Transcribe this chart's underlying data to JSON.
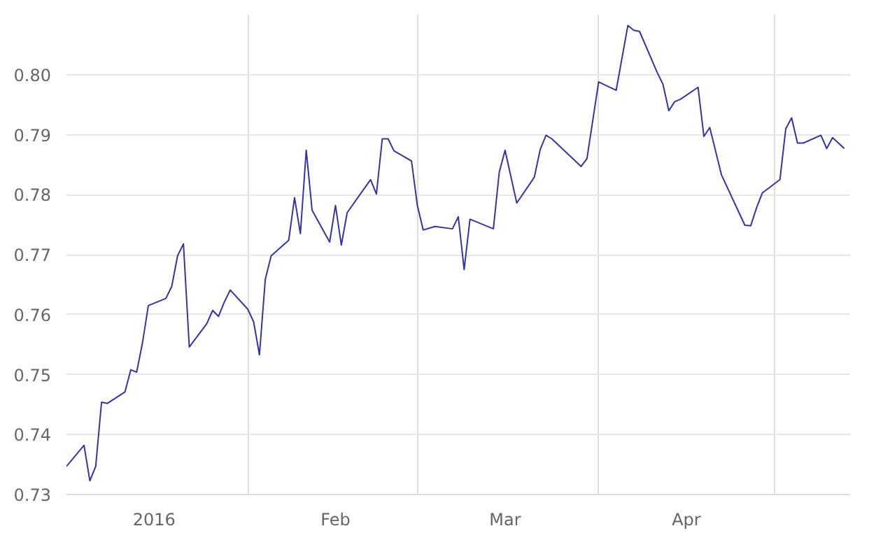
{
  "chart_data": {
    "type": "line",
    "x": [
      "2016-01-01",
      "2016-01-04",
      "2016-01-05",
      "2016-01-06",
      "2016-01-07",
      "2016-01-08",
      "2016-01-11",
      "2016-01-12",
      "2016-01-13",
      "2016-01-14",
      "2016-01-15",
      "2016-01-18",
      "2016-01-19",
      "2016-01-20",
      "2016-01-21",
      "2016-01-22",
      "2016-01-25",
      "2016-01-26",
      "2016-01-27",
      "2016-01-28",
      "2016-01-29",
      "2016-02-01",
      "2016-02-02",
      "2016-02-03",
      "2016-02-04",
      "2016-02-05",
      "2016-02-08",
      "2016-02-09",
      "2016-02-10",
      "2016-02-11",
      "2016-02-12",
      "2016-02-15",
      "2016-02-16",
      "2016-02-17",
      "2016-02-18",
      "2016-02-22",
      "2016-02-23",
      "2016-02-24",
      "2016-02-25",
      "2016-02-26",
      "2016-02-29",
      "2016-03-01",
      "2016-03-02",
      "2016-03-04",
      "2016-03-07",
      "2016-03-08",
      "2016-03-09",
      "2016-03-10",
      "2016-03-14",
      "2016-03-15",
      "2016-03-16",
      "2016-03-18",
      "2016-03-21",
      "2016-03-22",
      "2016-03-23",
      "2016-03-24",
      "2016-03-29",
      "2016-03-30",
      "2016-04-01",
      "2016-04-04",
      "2016-04-06",
      "2016-04-07",
      "2016-04-08",
      "2016-04-11",
      "2016-04-12",
      "2016-04-13",
      "2016-04-14",
      "2016-04-15",
      "2016-04-18",
      "2016-04-19",
      "2016-04-20",
      "2016-04-22",
      "2016-04-26",
      "2016-04-27",
      "2016-04-28",
      "2016-04-29",
      "2016-05-02",
      "2016-05-03",
      "2016-05-04",
      "2016-05-05",
      "2016-05-06",
      "2016-05-09",
      "2016-05-10",
      "2016-05-11",
      "2016-05-13"
    ],
    "series": [
      {
        "color": "#3333aa",
        "values": [
          0.7347,
          0.7382,
          0.7323,
          0.7347,
          0.7454,
          0.7452,
          0.7471,
          0.7508,
          0.7504,
          0.7553,
          0.7615,
          0.7627,
          0.7647,
          0.7698,
          0.7718,
          0.7546,
          0.7585,
          0.7607,
          0.7597,
          0.7621,
          0.7641,
          0.7609,
          0.7588,
          0.7533,
          0.7659,
          0.7698,
          0.7724,
          0.7795,
          0.7735,
          0.7874,
          0.7774,
          0.7721,
          0.7782,
          0.7716,
          0.777,
          0.7825,
          0.7801,
          0.7893,
          0.7893,
          0.7873,
          0.7856,
          0.7782,
          0.7741,
          0.7747,
          0.7743,
          0.7763,
          0.7675,
          0.7759,
          0.7743,
          0.7837,
          0.7874,
          0.7786,
          0.7829,
          0.7875,
          0.7899,
          0.7893,
          0.7847,
          0.786,
          0.7988,
          0.7974,
          0.8082,
          0.8074,
          0.8072,
          0.8004,
          0.7984,
          0.794,
          0.7955,
          0.7959,
          0.7979,
          0.7897,
          0.7912,
          0.7833,
          0.7749,
          0.7748,
          0.7778,
          0.7803,
          0.7825,
          0.791,
          0.7928,
          0.7886,
          0.7886,
          0.7899,
          0.7877,
          0.7895,
          0.7877
        ]
      }
    ],
    "xlim": [
      "2016-01-01",
      "2016-05-14"
    ],
    "xticks": [
      {
        "value": "2016-01-16",
        "label": "2016"
      },
      {
        "value": "2016-02-01",
        "label": null
      },
      {
        "value": "2016-02-16",
        "label": "Feb"
      },
      {
        "value": "2016-03-01",
        "label": null
      },
      {
        "value": "2016-03-16",
        "label": "Mar"
      },
      {
        "value": "2016-04-01",
        "label": null
      },
      {
        "value": "2016-04-16",
        "label": "Apr"
      },
      {
        "value": "2016-05-01",
        "label": null
      }
    ],
    "ylim": [
      0.73,
      0.81
    ],
    "yticks": [
      0.73,
      0.74,
      0.75,
      0.76,
      0.77,
      0.78,
      0.79,
      {
        "value": 0.8,
        "label": "0.80"
      }
    ],
    "grid": true,
    "marker": "none",
    "line_style": "solid"
  }
}
